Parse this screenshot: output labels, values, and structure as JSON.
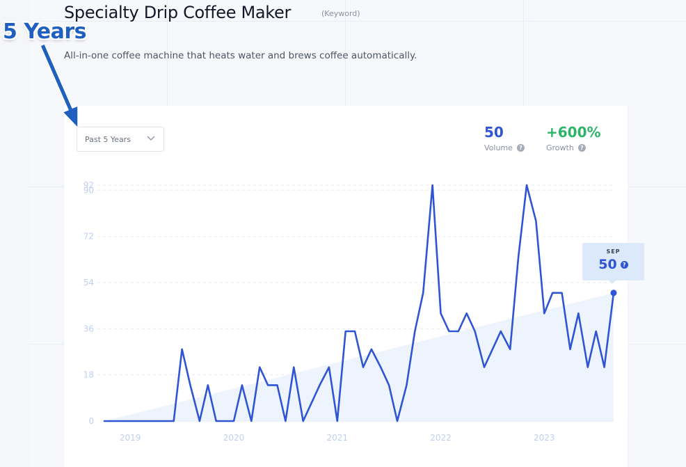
{
  "header": {
    "title": "Specialty Drip Coffee Maker",
    "keyword_tag": "(Keyword)",
    "description": "All-in-one coffee machine that heats water and brews coffee automatically."
  },
  "overlay": {
    "label": "5 Years",
    "color": "#1f5fbf"
  },
  "controls": {
    "range_select": "Past 5 Years",
    "range_icon": "chevron-down-icon"
  },
  "metrics": {
    "volume": {
      "value": "50",
      "label": "Volume",
      "color": "#2f54d4"
    },
    "growth": {
      "value": "+600%",
      "label": "Growth",
      "color": "#2db36a"
    },
    "help_icon": "question-circle-icon"
  },
  "tooltip": {
    "month": "SEP",
    "value": "50"
  },
  "chart_data": {
    "type": "line",
    "series_color": "#2f54d4",
    "trend_fill": "#eef4fd",
    "y_ticks": [
      "0",
      "18",
      "36",
      "54",
      "72",
      "90",
      "92"
    ],
    "ylim": [
      0,
      92
    ],
    "x_ticks": [
      {
        "label": "2019",
        "x": 2019.0
      },
      {
        "label": "2020",
        "x": 2020.0
      },
      {
        "label": "2021",
        "x": 2021.0
      },
      {
        "label": "2022",
        "x": 2022.0
      },
      {
        "label": "2023",
        "x": 2023.0
      }
    ],
    "x": [
      2018.75,
      2018.83,
      2018.92,
      2019.0,
      2019.08,
      2019.17,
      2019.25,
      2019.33,
      2019.42,
      2019.5,
      2019.58,
      2019.67,
      2019.75,
      2019.83,
      2019.92,
      2020.0,
      2020.08,
      2020.17,
      2020.25,
      2020.33,
      2020.42,
      2020.5,
      2020.58,
      2020.67,
      2020.75,
      2020.83,
      2020.92,
      2021.0,
      2021.08,
      2021.17,
      2021.25,
      2021.33,
      2021.42,
      2021.5,
      2021.58,
      2021.67,
      2021.75,
      2021.83,
      2021.92,
      2022.0,
      2022.08,
      2022.17,
      2022.25,
      2022.33,
      2022.42,
      2022.5,
      2022.58,
      2022.67,
      2022.75,
      2022.83,
      2022.92,
      2023.0,
      2023.08,
      2023.17,
      2023.25,
      2023.33,
      2023.42,
      2023.5,
      2023.58,
      2023.67
    ],
    "values": [
      0,
      0,
      0,
      0,
      0,
      0,
      0,
      0,
      0,
      28,
      14,
      0,
      14,
      0,
      0,
      0,
      14,
      0,
      21,
      14,
      14,
      0,
      21,
      0,
      7,
      14,
      21,
      0,
      35,
      35,
      21,
      28,
      21,
      14,
      0,
      14,
      35,
      50,
      92,
      42,
      35,
      35,
      42,
      35,
      21,
      28,
      35,
      28,
      64,
      92,
      78,
      42,
      50,
      50,
      28,
      42,
      21,
      35,
      21,
      50
    ],
    "trend_start": 0,
    "trend_end": 50
  }
}
